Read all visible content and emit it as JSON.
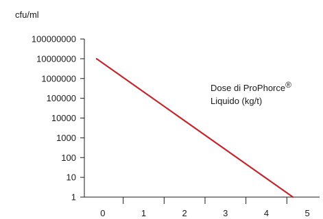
{
  "chart_data": {
    "type": "line",
    "title": "",
    "ylabel": "cfu/ml",
    "xlabel": "",
    "y_scale": "log",
    "ylim": [
      1,
      100000000
    ],
    "xlim": [
      -0.45,
      5.3
    ],
    "y_ticks": [
      1,
      10,
      100,
      1000,
      10000,
      100000,
      1000000,
      10000000,
      100000000
    ],
    "y_tick_labels": [
      "1",
      "10",
      "100",
      "1000",
      "10000",
      "100000",
      "1000000",
      "10000000",
      "100000000"
    ],
    "x_tick_labels": [
      "0",
      "1",
      "2",
      "3",
      "4",
      "5"
    ],
    "x_tick_label_values": [
      0,
      1,
      2,
      3,
      4,
      5
    ],
    "grid": false,
    "annotation": {
      "line1": "Dose di ProPhorce",
      "superscript": "®",
      "line2": "Liquido (kg/t)"
    },
    "series": [
      {
        "color": "#c1272d",
        "points": [
          [
            -0.15,
            10000000
          ],
          [
            4.65,
            1
          ]
        ]
      }
    ]
  }
}
